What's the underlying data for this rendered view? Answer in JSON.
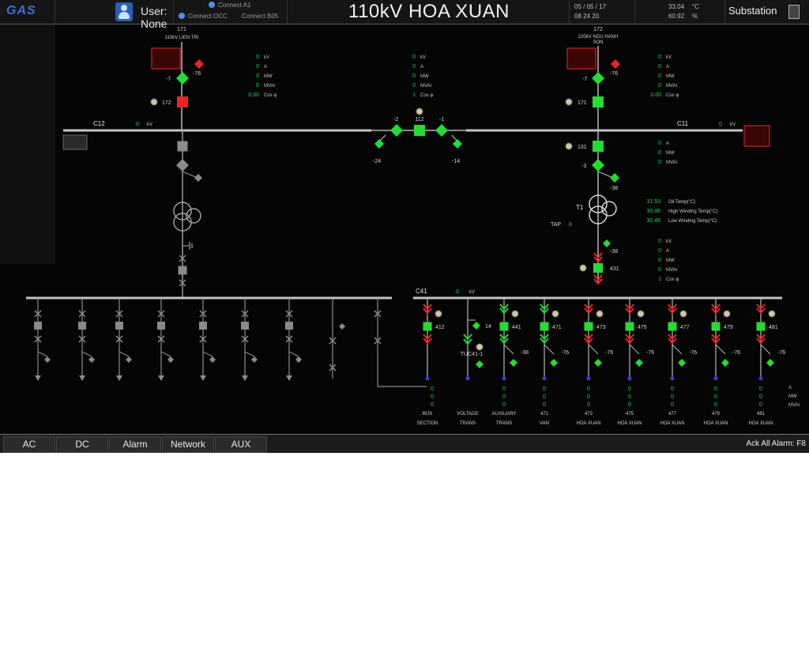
{
  "header": {
    "logo": "GAS",
    "user": "User: None",
    "connect_a1": "Connect A1",
    "connect_occ": "Connect OCC",
    "connect_b05": "Connect B05",
    "title": "110kV HOA XUAN",
    "date": "05 / 05 / 17",
    "time": "08 24 20",
    "temperature": "33.04",
    "temperature_unit": "°C",
    "humidity": "60.92",
    "humidity_unit": "%",
    "substation": "Substation"
  },
  "footer": {
    "tabs": [
      "AC",
      "DC",
      "Alarm",
      "Network",
      "AUX"
    ],
    "ack": "Ack All Alarm: F8"
  },
  "colors": {
    "closed_breaker": "#22dd33",
    "open_breaker": "#ee2222",
    "offline": "#8a8a8a",
    "value": "#22d14e",
    "alarm": "#d42020"
  },
  "diagram": {
    "feeder_171": {
      "label": "171",
      "line": "110kV LIEN TRI",
      "isolator": "-7",
      "earth": "-76",
      "breaker": "172"
    },
    "feeder_172": {
      "label": "172",
      "line": "220kV NGU HANH",
      "line2": "SON",
      "isolator": "-7",
      "earth": "-76",
      "breaker": "171"
    },
    "bus_c12": "C12",
    "bus_c12_value": "0",
    "bus_c12_unit": "kV",
    "bus_c11": "C11",
    "bus_c11_value": "0",
    "bus_c11_unit": "kV",
    "coupler": {
      "breaker": "112",
      "left": "-2",
      "right": "-1",
      "earth_left": "-24",
      "earth_right": "-14"
    },
    "t1": {
      "name": "T1",
      "breaker": "131",
      "isolator": "-3",
      "earth": "-38",
      "tap_label": "TAP",
      "tap_value": "8",
      "lv_breaker": "431",
      "lv_earth": "-38"
    },
    "t1_temps": [
      {
        "value": "31.53",
        "label": "Oil Temp(°C)"
      },
      {
        "value": "30.86",
        "label": "High Winding Temp(°C)"
      },
      {
        "value": "30.48",
        "label": "Low Winding Temp(°C)"
      }
    ],
    "meas_171": [
      {
        "v": "0",
        "u": "kV"
      },
      {
        "v": "0",
        "u": "A"
      },
      {
        "v": "0",
        "u": "MW"
      },
      {
        "v": "0",
        "u": "MVAr"
      },
      {
        "v": "0.00",
        "u": "Cos φ"
      }
    ],
    "meas_coupler": [
      {
        "v": "0",
        "u": "kV"
      },
      {
        "v": "0",
        "u": "A"
      },
      {
        "v": "0",
        "u": "MW"
      },
      {
        "v": "0",
        "u": "MVAr"
      },
      {
        "v": "1",
        "u": "Cos φ"
      }
    ],
    "meas_172": [
      {
        "v": "0",
        "u": "kV"
      },
      {
        "v": "0",
        "u": "A"
      },
      {
        "v": "0",
        "u": "MW"
      },
      {
        "v": "0",
        "u": "MVAr"
      },
      {
        "v": "0.00",
        "u": "Cos φ"
      }
    ],
    "meas_131": [
      {
        "v": "0",
        "u": "A"
      },
      {
        "v": "0",
        "u": "MW"
      },
      {
        "v": "0",
        "u": "MVAr"
      }
    ],
    "meas_431": [
      {
        "v": "0",
        "u": "kV"
      },
      {
        "v": "0",
        "u": "A"
      },
      {
        "v": "0",
        "u": "MW"
      },
      {
        "v": "0",
        "u": "MVAr"
      },
      {
        "v": "1",
        "u": "Cos φ"
      }
    ],
    "bus_c41": "C41",
    "bus_c41_value": "0",
    "bus_c41_unit": "kV",
    "tuc": "TUC41-1",
    "tuc_earth": "14",
    "feeders": [
      {
        "id": "412",
        "n1": "BUS",
        "n2": "SECTION",
        "earth": ""
      },
      {
        "id": "",
        "n1": "VOLTAGE",
        "n2": "TRANS",
        "earth": ""
      },
      {
        "id": "441",
        "n1": "AUXILIARY",
        "n2": "TRANS",
        "earth": "-38"
      },
      {
        "id": "471",
        "n1": "471",
        "n2": "VAN",
        "earth": "-76"
      },
      {
        "id": "473",
        "n1": "473",
        "n2": "HOA XUAN",
        "earth": "-76"
      },
      {
        "id": "475",
        "n1": "475",
        "n2": "HOA XUAN",
        "earth": "-76"
      },
      {
        "id": "477",
        "n1": "477",
        "n2": "HOA XUAN",
        "earth": "-76"
      },
      {
        "id": "479",
        "n1": "479",
        "n2": "HOA XUAN",
        "earth": "-76"
      },
      {
        "id": "481",
        "n1": "481",
        "n2": "HOA XUAN",
        "earth": "-76"
      }
    ],
    "feeder_value": "0",
    "feeder_units": [
      "A",
      "MW",
      "MVAr"
    ]
  }
}
